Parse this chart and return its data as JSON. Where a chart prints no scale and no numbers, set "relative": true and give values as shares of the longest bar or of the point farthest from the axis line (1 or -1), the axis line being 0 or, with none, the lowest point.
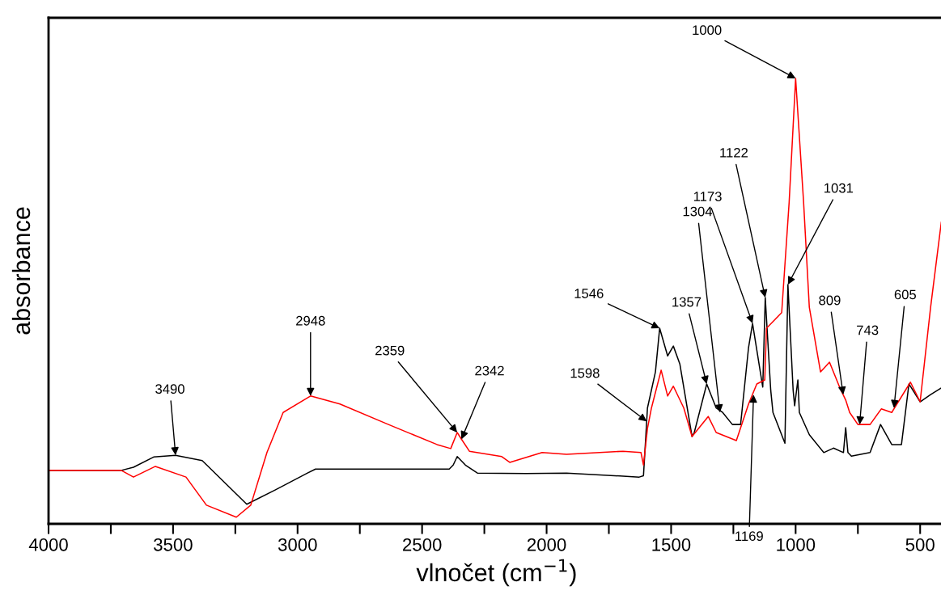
{
  "chart_data": {
    "type": "line",
    "relative": true,
    "xlabel": "vlnočet (cm$^{−1}$)",
    "ylabel": "absorbance",
    "xlim": [
      4000,
      400
    ],
    "xticks": [
      4000,
      {
        "value": 3750,
        "label": null
      },
      3500,
      {
        "value": 3250,
        "label": null
      },
      3000,
      {
        "value": 2750,
        "label": null
      },
      2500,
      {
        "value": 2250,
        "label": null
      },
      2000,
      {
        "value": 1750,
        "label": null
      },
      1500,
      {
        "value": 1250,
        "label": null
      },
      1000,
      {
        "value": 750,
        "label": null
      },
      500
    ],
    "tick_labels": "x",
    "grid": false,
    "legend": false,
    "marker": "none",
    "line_style": "solid",
    "series": [
      {
        "color": "#000000",
        "x": [
          4000,
          3708,
          3659,
          3578,
          3490,
          3383,
          3204,
          3090,
          2960,
          2928,
          2635,
          2391,
          2375,
          2359,
          2326,
          2278,
          2083,
          1920,
          1628,
          1611,
          1595,
          1563,
          1546,
          1514,
          1491,
          1465,
          1416,
          1407,
          1357,
          1319,
          1293,
          1254,
          1221,
          1189,
          1173,
          1132,
          1122,
          1100,
          1091,
          1043,
          1031,
          1010,
          1004,
          991,
          985,
          945,
          887,
          848,
          808,
          799,
          790,
          776,
          701,
          659,
          614,
          575,
          545,
          500,
          458,
          415
        ],
        "values": [
          0.12,
          0.12,
          0.127,
          0.15,
          0.154,
          0.142,
          0.044,
          0.076,
          0.114,
          0.123,
          0.123,
          0.123,
          0.132,
          0.151,
          0.132,
          0.114,
          0.113,
          0.114,
          0.105,
          0.108,
          0.26,
          0.341,
          0.439,
          0.377,
          0.399,
          0.359,
          0.196,
          0.205,
          0.314,
          0.26,
          0.25,
          0.223,
          0.223,
          0.396,
          0.45,
          0.307,
          0.508,
          0.3,
          0.25,
          0.181,
          0.537,
          0.3,
          0.265,
          0.323,
          0.25,
          0.2,
          0.16,
          0.17,
          0.16,
          0.216,
          0.16,
          0.152,
          0.16,
          0.223,
          0.178,
          0.178,
          0.314,
          0.274,
          0.29,
          0.305
        ]
      },
      {
        "color": "#ff0000",
        "x": [
          4000,
          3708,
          3659,
          3571,
          3448,
          3366,
          3246,
          3188,
          3123,
          3058,
          2948,
          2830,
          2635,
          2440,
          2385,
          2359,
          2343,
          2310,
          2180,
          2148,
          2018,
          1920,
          1693,
          1621,
          1611,
          1595,
          1579,
          1540,
          1514,
          1491,
          1449,
          1416,
          1351,
          1319,
          1238,
          1189,
          1156,
          1124,
          1117,
          1056,
          1026,
          1000,
          968,
          945,
          900,
          864,
          822,
          799,
          783,
          750,
          701,
          656,
          614,
          539,
          500,
          458,
          415
        ],
        "values": [
          0.12,
          0.12,
          0.105,
          0.129,
          0.105,
          0.042,
          0.015,
          0.042,
          0.16,
          0.25,
          0.287,
          0.269,
          0.223,
          0.178,
          0.169,
          0.205,
          0.191,
          0.163,
          0.151,
          0.138,
          0.16,
          0.156,
          0.163,
          0.16,
          0.132,
          0.214,
          0.26,
          0.345,
          0.287,
          0.309,
          0.26,
          0.196,
          0.241,
          0.205,
          0.187,
          0.269,
          0.314,
          0.323,
          0.439,
          0.474,
          0.722,
          1.0,
          0.722,
          0.486,
          0.341,
          0.363,
          0.305,
          0.278,
          0.25,
          0.223,
          0.223,
          0.258,
          0.25,
          0.318,
          0.274,
          0.486,
          0.677
        ]
      }
    ],
    "annotations": [
      {
        "text": "3490",
        "x": 3490,
        "y": 0.154
      },
      {
        "text": "2948",
        "x": 2948,
        "y": 0.287
      },
      {
        "text": "2359",
        "x": 2359,
        "y": 0.205
      },
      {
        "text": "2342",
        "x": 2342,
        "y": 0.19
      },
      {
        "text": "1598",
        "x": 1598,
        "y": 0.23
      },
      {
        "text": "1546",
        "x": 1546,
        "y": 0.439
      },
      {
        "text": "1357",
        "x": 1357,
        "y": 0.314
      },
      {
        "text": "1304",
        "x": 1304,
        "y": 0.25
      },
      {
        "text": "1173",
        "x": 1173,
        "y": 0.45
      },
      {
        "text": "1122",
        "x": 1122,
        "y": 0.508
      },
      {
        "text": "1031",
        "x": 1031,
        "y": 0.537
      },
      {
        "text": "1000",
        "x": 1000,
        "y": 1.0
      },
      {
        "text": "809",
        "x": 809,
        "y": 0.29
      },
      {
        "text": "743",
        "x": 743,
        "y": 0.223
      },
      {
        "text": "605",
        "x": 605,
        "y": 0.26
      },
      {
        "text": "1169",
        "x": 1169,
        "y": 0.29
      }
    ]
  }
}
